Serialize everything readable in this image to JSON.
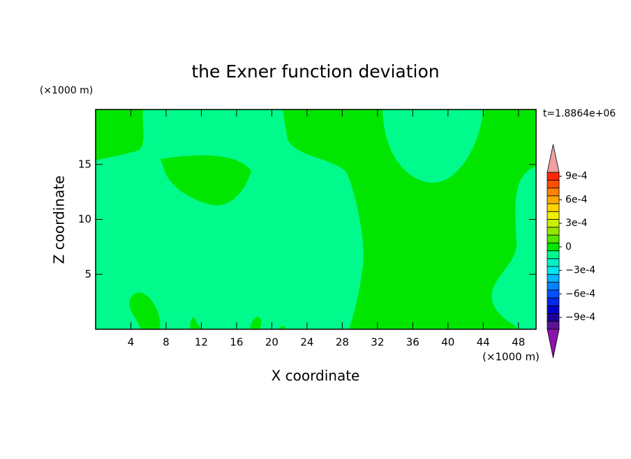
{
  "chart_data": {
    "type": "contour",
    "title": "the Exner function deviation",
    "x_label": "X coordinate",
    "y_label": "Z coordinate",
    "x_unit": "(×1000 m)",
    "y_unit": "(×1000 m)",
    "time_label": "t=1.8864e+06",
    "xlim": [
      0,
      50
    ],
    "ylim": [
      0,
      20
    ],
    "xticks": [
      4,
      8,
      12,
      16,
      20,
      24,
      28,
      32,
      36,
      40,
      44,
      48
    ],
    "yticks": [
      5,
      10,
      15
    ],
    "colorbar": {
      "levels": [
        -0.001,
        -0.0009,
        -0.0008,
        -0.0007,
        -0.0006,
        -0.0005,
        -0.0004,
        -0.0003,
        -0.0002,
        -0.0001,
        0,
        0.0001,
        0.0002,
        0.0003,
        0.0004,
        0.0005,
        0.0006,
        0.0007,
        0.0008,
        0.0009,
        0.001
      ],
      "colors": [
        "#5a1496",
        "#1e0096",
        "#0000c8",
        "#0028e6",
        "#0050ff",
        "#0082ff",
        "#00b4ff",
        "#00e6f0",
        "#00f0c8",
        "#00fa8c",
        "#00e600",
        "#50e600",
        "#96e600",
        "#c8f000",
        "#f0f000",
        "#ffd200",
        "#ffaa00",
        "#ff8200",
        "#ff5000",
        "#ff2800"
      ],
      "extend_colors": [
        "#8c14aa",
        "#f0a0a0"
      ],
      "ticks": [
        {
          "value": -0.0009,
          "label": "−9e-4"
        },
        {
          "value": -0.0006,
          "label": "−6e-4"
        },
        {
          "value": -0.0003,
          "label": "−3e-4"
        },
        0,
        {
          "value": 0.0003,
          "label": "3e-4"
        },
        {
          "value": 0.0006,
          "label": "6e-4"
        },
        {
          "value": 0.0009,
          "label": "9e-4"
        }
      ]
    }
  }
}
